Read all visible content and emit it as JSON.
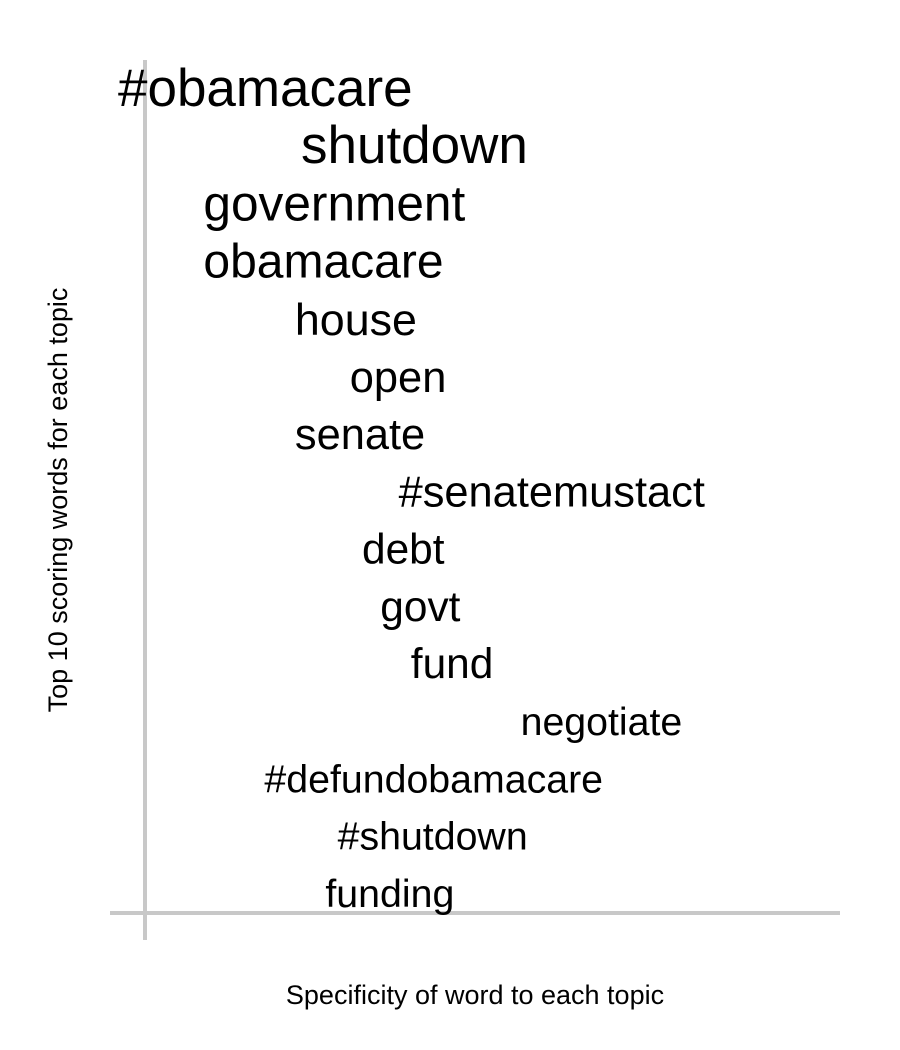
{
  "chart_data": {
    "type": "scatter",
    "title": "",
    "xlabel": "Specificity of word to each topic",
    "ylabel": "Top 10 scoring words for each topic",
    "grid": false,
    "axis_color": "#c8c8c8",
    "text_color": "#000000",
    "points": [
      {
        "word": "#obamacare",
        "rank": 1,
        "specificity": 0.0,
        "score": 1.0
      },
      {
        "word": "shutdown",
        "rank": 2,
        "specificity": 0.3,
        "score": 1.0
      },
      {
        "word": "government",
        "rank": 3,
        "specificity": 0.14,
        "score": 0.86
      },
      {
        "word": "obamacare",
        "rank": 4,
        "specificity": 0.14,
        "score": 0.79
      },
      {
        "word": "house",
        "rank": 5,
        "specificity": 0.29,
        "score": 0.66
      },
      {
        "word": "open",
        "rank": 6,
        "specificity": 0.38,
        "score": 0.6
      },
      {
        "word": "senate",
        "rank": 7,
        "specificity": 0.29,
        "score": 0.6
      },
      {
        "word": "#senatemustact",
        "rank": 8,
        "specificity": 0.46,
        "score": 0.6
      },
      {
        "word": "debt",
        "rank": 9,
        "specificity": 0.4,
        "score": 0.56
      },
      {
        "word": "govt",
        "rank": 10,
        "specificity": 0.43,
        "score": 0.56
      },
      {
        "word": "fund",
        "rank": 11,
        "specificity": 0.48,
        "score": 0.56
      },
      {
        "word": "negotiate",
        "rank": 12,
        "specificity": 0.66,
        "score": 0.43
      },
      {
        "word": "#defundobamacare",
        "rank": 13,
        "specificity": 0.24,
        "score": 0.43
      },
      {
        "word": "#shutdown",
        "rank": 14,
        "specificity": 0.36,
        "score": 0.43
      },
      {
        "word": "funding",
        "rank": 15,
        "specificity": 0.34,
        "score": 0.43
      }
    ]
  }
}
